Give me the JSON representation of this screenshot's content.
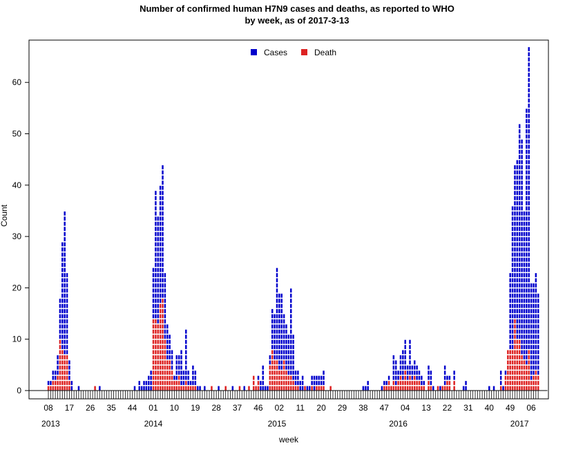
{
  "chart_data": {
    "type": "bar",
    "stacking": "overlay",
    "title": "Number of confirmed human H7N9 cases and deaths, as reported to WHO",
    "subtitle": "by week, as of 2017-3-13",
    "xlabel": "week",
    "ylabel": "Count",
    "ylim": [
      0,
      68
    ],
    "yticks": [
      0,
      10,
      20,
      30,
      40,
      50,
      60
    ],
    "start_week": "2013-W08",
    "xtick_labels": [
      "08",
      "17",
      "26",
      "35",
      "44",
      "01",
      "10",
      "19",
      "28",
      "37",
      "46",
      "02",
      "11",
      "20",
      "29",
      "38",
      "47",
      "04",
      "13",
      "22",
      "31",
      "40",
      "49",
      "06"
    ],
    "year_labels": [
      "2013",
      "2014",
      "2015",
      "2016",
      "2017"
    ],
    "legend_position": "top",
    "grid": false,
    "series": [
      {
        "name": "Cases",
        "color": "#0000CC",
        "values": [
          2,
          2,
          4,
          4,
          7,
          18,
          29,
          35,
          23,
          6,
          2,
          0,
          0,
          1,
          0,
          0,
          0,
          0,
          0,
          0,
          1,
          0,
          1,
          0,
          0,
          0,
          0,
          0,
          0,
          0,
          0,
          0,
          0,
          0,
          0,
          0,
          0,
          1,
          0,
          2,
          1,
          2,
          2,
          3,
          4,
          24,
          39,
          34,
          40,
          44,
          23,
          13,
          11,
          8,
          3,
          7,
          7,
          8,
          4,
          12,
          4,
          2,
          5,
          4,
          1,
          1,
          0,
          1,
          0,
          0,
          1,
          0,
          0,
          1,
          0,
          0,
          1,
          0,
          0,
          1,
          0,
          0,
          1,
          0,
          1,
          0,
          1,
          0,
          0,
          1,
          3,
          2,
          5,
          1,
          1,
          7,
          16,
          15,
          24,
          19,
          19,
          15,
          13,
          11,
          20,
          11,
          4,
          4,
          2,
          3,
          1,
          1,
          1,
          3,
          3,
          3,
          3,
          3,
          4,
          0,
          0,
          1,
          0,
          0,
          0,
          0,
          0,
          0,
          0,
          0,
          0,
          0,
          0,
          0,
          0,
          1,
          1,
          2,
          0,
          0,
          0,
          0,
          0,
          1,
          2,
          2,
          3,
          1,
          7,
          6,
          4,
          7,
          8,
          10,
          5,
          10,
          5,
          6,
          5,
          4,
          3,
          2,
          0,
          5,
          4,
          1,
          0,
          1,
          1,
          1,
          5,
          3,
          3,
          0,
          4,
          0,
          0,
          0,
          1,
          2,
          0,
          0,
          0,
          0,
          0,
          0,
          0,
          0,
          0,
          1,
          0,
          1,
          0,
          0,
          4,
          1,
          4,
          8,
          23,
          36,
          44,
          45,
          52,
          49,
          35,
          55,
          67,
          21,
          21,
          23,
          19
        ]
      },
      {
        "name": "Death",
        "color": "#DD2222",
        "values": [
          1,
          1,
          2,
          2,
          3,
          10,
          8,
          7,
          7,
          2,
          0,
          0,
          0,
          0,
          0,
          0,
          0,
          0,
          0,
          0,
          1,
          0,
          0,
          0,
          0,
          0,
          0,
          0,
          0,
          0,
          0,
          0,
          0,
          0,
          0,
          0,
          0,
          0,
          0,
          0,
          0,
          0,
          0,
          0,
          0,
          14,
          14,
          13,
          17,
          18,
          10,
          6,
          6,
          4,
          2,
          2,
          3,
          1,
          1,
          2,
          1,
          1,
          1,
          1,
          0,
          0,
          0,
          0,
          0,
          0,
          1,
          0,
          0,
          0,
          0,
          0,
          1,
          0,
          0,
          0,
          0,
          0,
          1,
          0,
          0,
          0,
          1,
          0,
          3,
          1,
          2,
          0,
          0,
          0,
          0,
          5,
          8,
          6,
          6,
          4,
          4,
          6,
          4,
          3,
          3,
          2,
          1,
          1,
          0,
          0,
          1,
          0,
          0,
          1,
          0,
          1,
          1,
          1,
          1,
          0,
          0,
          1,
          0,
          0,
          0,
          0,
          0,
          0,
          0,
          0,
          0,
          0,
          0,
          0,
          0,
          0,
          0,
          0,
          0,
          0,
          0,
          0,
          0,
          0,
          1,
          1,
          2,
          1,
          2,
          1,
          2,
          3,
          2,
          4,
          2,
          3,
          2,
          3,
          2,
          2,
          1,
          1,
          0,
          2,
          1,
          0,
          0,
          1,
          0,
          1,
          1,
          2,
          2,
          0,
          2,
          0,
          0,
          0,
          0,
          0,
          0,
          0,
          0,
          0,
          0,
          0,
          0,
          0,
          0,
          0,
          0,
          0,
          0,
          0,
          1,
          0,
          3,
          8,
          8,
          8,
          14,
          10,
          10,
          7,
          6,
          5,
          8,
          2,
          3,
          4,
          3
        ]
      }
    ]
  }
}
